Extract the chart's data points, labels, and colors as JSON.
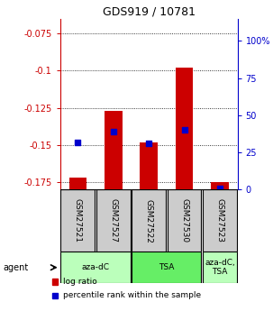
{
  "title": "GDS919 / 10781",
  "samples": [
    "GSM27521",
    "GSM27527",
    "GSM27522",
    "GSM27530",
    "GSM27523"
  ],
  "log_ratios": [
    -0.172,
    -0.127,
    -0.148,
    -0.098,
    -0.175
  ],
  "percentile_ranks": [
    32,
    39,
    31,
    40,
    1
  ],
  "bar_color": "#cc0000",
  "dot_color": "#0000cc",
  "ylim_left": [
    -0.18,
    -0.065
  ],
  "yticks_left": [
    -0.175,
    -0.15,
    -0.125,
    -0.1,
    -0.075
  ],
  "ylim_right": [
    0,
    115
  ],
  "yticks_right": [
    0,
    25,
    50,
    75,
    100
  ],
  "yticklabels_right": [
    "0",
    "25",
    "50",
    "75",
    "100%"
  ],
  "agent_labels": [
    "aza-dC",
    "TSA",
    "aza-dC,\nTSA"
  ],
  "agent_groups": [
    [
      0,
      1
    ],
    [
      2,
      3
    ],
    [
      4
    ]
  ],
  "agent_colors": [
    "#bbffbb",
    "#66ee66",
    "#bbffbb"
  ],
  "sample_box_color": "#cccccc",
  "left_axis_color": "#cc0000",
  "right_axis_color": "#0000cc",
  "legend_items": [
    "log ratio",
    "percentile rank within the sample"
  ],
  "legend_colors": [
    "#cc0000",
    "#0000cc"
  ],
  "bar_width": 0.5
}
